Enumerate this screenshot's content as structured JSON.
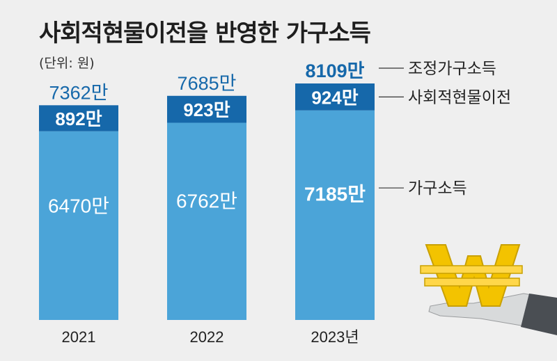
{
  "title": "사회적현물이전을 반영한 가구소득",
  "unit": "(단위: 원)",
  "chart_data": {
    "type": "bar",
    "stacked": true,
    "categories": [
      "2021",
      "2022",
      "2023년"
    ],
    "series": [
      {
        "name": "가구소득",
        "values": [
          6470,
          6762,
          7185
        ],
        "labels": [
          "6470만",
          "6762만",
          "7185만"
        ],
        "color": "#4ba4d8"
      },
      {
        "name": "사회적현물이전",
        "values": [
          892,
          923,
          924
        ],
        "labels": [
          "892만",
          "923만",
          "924만"
        ],
        "color": "#1668aa"
      }
    ],
    "totals": {
      "name": "조정가구소득",
      "values": [
        7362,
        7685,
        8109
      ],
      "labels": [
        "7362만",
        "7685만",
        "8109만"
      ]
    },
    "ylim": [
      0,
      8109
    ]
  },
  "colors": {
    "bar_light": "#4ba4d8",
    "bar_dark": "#1668aa",
    "total_text": "#1668aa",
    "background": "#efefef"
  },
  "icons": [
    "won-coin-icon",
    "hand-icon"
  ]
}
